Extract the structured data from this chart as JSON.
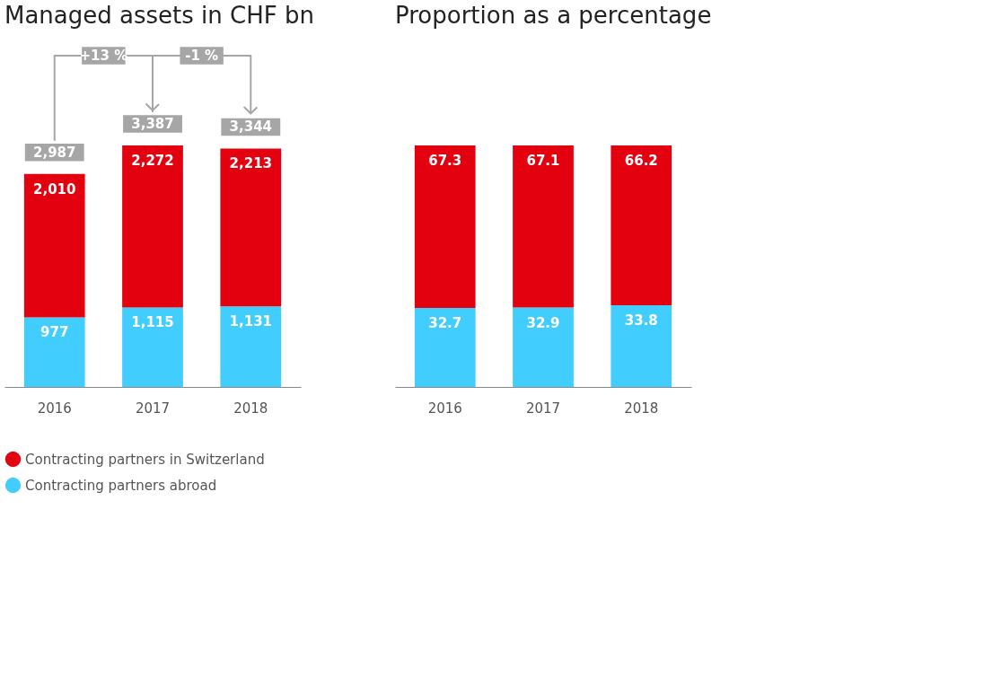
{
  "chart_data": [
    {
      "type": "bar",
      "title": "Managed assets in CHF bn",
      "categories": [
        "2016",
        "2017",
        "2018"
      ],
      "stacked": true,
      "legend": "bottom",
      "series": [
        {
          "name": "Contracting partners abroad",
          "color": "#42cdff",
          "values": [
            977,
            1115,
            1131
          ],
          "value_labels": [
            "977",
            "1,115",
            "1,131"
          ]
        },
        {
          "name": "Contracting partners in Switzerland",
          "color": "#e3000f",
          "values": [
            2010,
            2272,
            2213
          ],
          "value_labels": [
            "2,010",
            "2,272",
            "2,213"
          ]
        }
      ],
      "totals": [
        "2,987",
        "3,387",
        "3,344"
      ],
      "annotations": [
        "+13 %",
        "-1 %"
      ]
    },
    {
      "type": "bar",
      "title": "Proportion as a percentage",
      "categories": [
        "2016",
        "2017",
        "2018"
      ],
      "stacked": true,
      "series": [
        {
          "color": "#42cdff",
          "values": [
            32.7,
            32.9,
            33.8
          ],
          "value_labels": [
            "32.7",
            "32.9",
            "33.8"
          ]
        },
        {
          "color": "#e3000f",
          "values": [
            67.3,
            67.1,
            66.2
          ],
          "value_labels": [
            "67.3",
            "67.1",
            "66.2"
          ]
        }
      ]
    }
  ]
}
